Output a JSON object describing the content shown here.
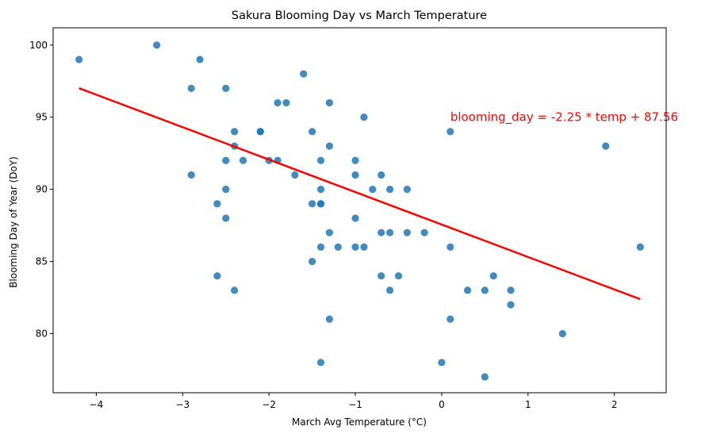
{
  "chart_data": {
    "type": "scatter",
    "title": "Sakura Blooming Day vs March Temperature",
    "xlabel": "March Avg Temperature (°C)",
    "ylabel": "Blooming Day of Year (DoY)",
    "xlim": [
      -4.5,
      2.6
    ],
    "ylim": [
      75.9,
      101.2
    ],
    "xticks": [
      -4,
      -3,
      -2,
      -1,
      0,
      1,
      2
    ],
    "xtick_labels": [
      "−4",
      "−3",
      "−2",
      "−1",
      "0",
      "1",
      "2"
    ],
    "yticks": [
      80,
      85,
      90,
      95,
      100
    ],
    "ytick_labels": [
      "80",
      "85",
      "90",
      "95",
      "100"
    ],
    "grid": false,
    "legend": false,
    "point_color": "#1f77b4",
    "line_color": "#ff0000",
    "annotation": {
      "text": "blooming_day = -2.25 * temp + 87.56",
      "x": 0.1,
      "y": 95,
      "color": "#ff0000"
    },
    "regression_line": {
      "slope": -2.25,
      "intercept": 87.56,
      "x_range": [
        -4.2,
        2.3
      ]
    },
    "points": [
      {
        "x": -4.2,
        "y": 99
      },
      {
        "x": -3.3,
        "y": 100
      },
      {
        "x": -2.8,
        "y": 99
      },
      {
        "x": -2.9,
        "y": 97
      },
      {
        "x": -2.5,
        "y": 97
      },
      {
        "x": -1.6,
        "y": 98
      },
      {
        "x": -1.9,
        "y": 96
      },
      {
        "x": -1.8,
        "y": 96
      },
      {
        "x": -1.3,
        "y": 96
      },
      {
        "x": -0.9,
        "y": 95
      },
      {
        "x": -2.4,
        "y": 94
      },
      {
        "x": -2.1,
        "y": 94
      },
      {
        "x": -2.1,
        "y": 94
      },
      {
        "x": -1.5,
        "y": 94
      },
      {
        "x": 0.1,
        "y": 94
      },
      {
        "x": -2.4,
        "y": 93
      },
      {
        "x": -1.3,
        "y": 93
      },
      {
        "x": 1.9,
        "y": 93
      },
      {
        "x": -2.5,
        "y": 92
      },
      {
        "x": -2.3,
        "y": 92
      },
      {
        "x": -2.0,
        "y": 92
      },
      {
        "x": -1.9,
        "y": 92
      },
      {
        "x": -1.4,
        "y": 92
      },
      {
        "x": -1.0,
        "y": 92
      },
      {
        "x": -2.9,
        "y": 91
      },
      {
        "x": -1.7,
        "y": 91
      },
      {
        "x": -1.0,
        "y": 91
      },
      {
        "x": -0.7,
        "y": 91
      },
      {
        "x": -2.5,
        "y": 90
      },
      {
        "x": -1.4,
        "y": 90
      },
      {
        "x": -0.8,
        "y": 90
      },
      {
        "x": -0.6,
        "y": 90
      },
      {
        "x": -0.4,
        "y": 90
      },
      {
        "x": -2.6,
        "y": 89
      },
      {
        "x": -1.5,
        "y": 89
      },
      {
        "x": -1.4,
        "y": 89
      },
      {
        "x": -1.4,
        "y": 89
      },
      {
        "x": -2.5,
        "y": 88
      },
      {
        "x": -1.0,
        "y": 88
      },
      {
        "x": -1.3,
        "y": 87
      },
      {
        "x": -0.7,
        "y": 87
      },
      {
        "x": -0.6,
        "y": 87
      },
      {
        "x": -0.4,
        "y": 87
      },
      {
        "x": -0.2,
        "y": 87
      },
      {
        "x": -1.4,
        "y": 86
      },
      {
        "x": -1.2,
        "y": 86
      },
      {
        "x": -1.0,
        "y": 86
      },
      {
        "x": -0.9,
        "y": 86
      },
      {
        "x": 0.1,
        "y": 86
      },
      {
        "x": 2.3,
        "y": 86
      },
      {
        "x": -1.5,
        "y": 85
      },
      {
        "x": -2.6,
        "y": 84
      },
      {
        "x": -0.7,
        "y": 84
      },
      {
        "x": -0.5,
        "y": 84
      },
      {
        "x": 0.6,
        "y": 84
      },
      {
        "x": -2.4,
        "y": 83
      },
      {
        "x": -0.6,
        "y": 83
      },
      {
        "x": 0.3,
        "y": 83
      },
      {
        "x": 0.5,
        "y": 83
      },
      {
        "x": 0.8,
        "y": 83
      },
      {
        "x": 0.8,
        "y": 82
      },
      {
        "x": -1.3,
        "y": 81
      },
      {
        "x": 0.1,
        "y": 81
      },
      {
        "x": 1.4,
        "y": 80
      },
      {
        "x": -1.4,
        "y": 78
      },
      {
        "x": 0.0,
        "y": 78
      },
      {
        "x": 0.5,
        "y": 77
      }
    ]
  }
}
